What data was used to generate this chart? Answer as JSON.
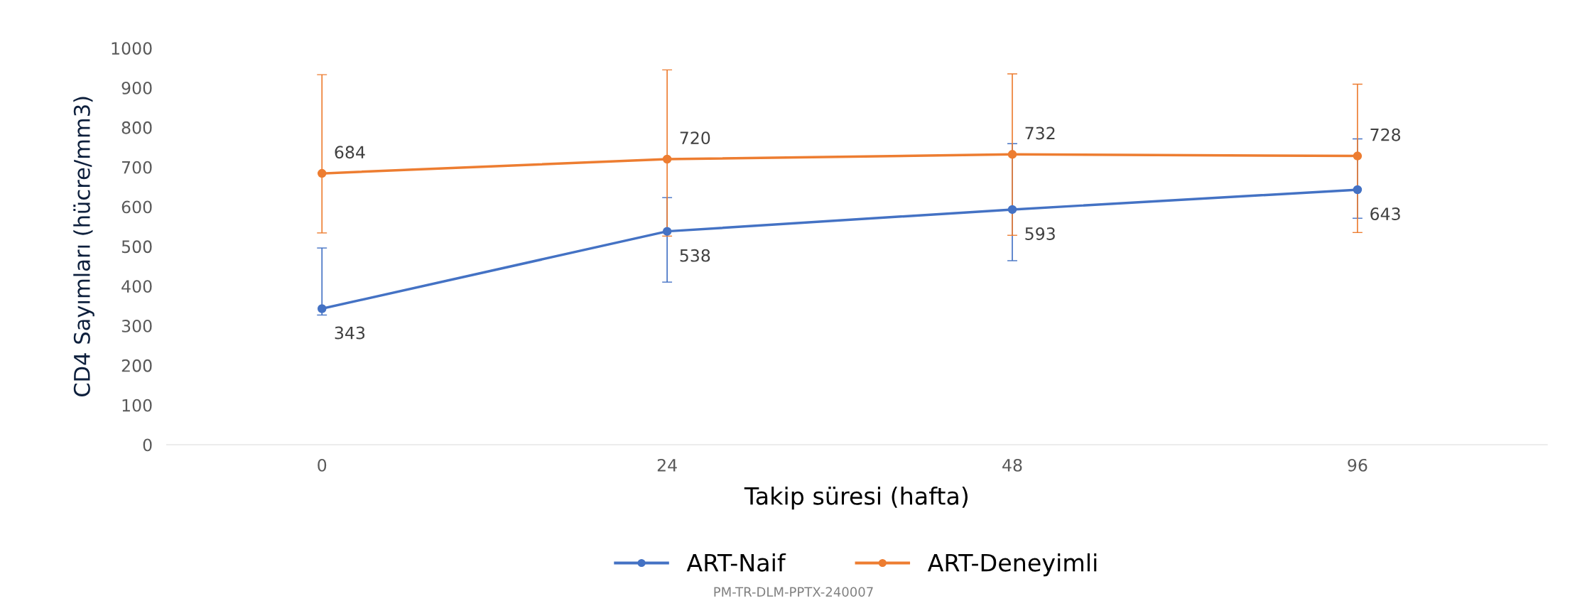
{
  "chart_data": {
    "type": "line",
    "xlabel": "Takip süresi (hafta)",
    "ylabel": "CD4 Sayımları (hücre/mm3)",
    "categories": [
      "0",
      "24",
      "48",
      "96"
    ],
    "series": [
      {
        "name": "ART-Naif",
        "color": "#4472c4",
        "values": [
          343,
          538,
          593,
          643
        ],
        "errors": [
          [
            327,
            496
          ],
          [
            410,
            623
          ],
          [
            464,
            759
          ],
          [
            571,
            771
          ]
        ]
      },
      {
        "name": "ART-Deneyimli",
        "color": "#ed7d31",
        "values": [
          684,
          720,
          732,
          728
        ],
        "errors": [
          [
            534,
            933
          ],
          [
            526,
            945
          ],
          [
            528,
            935
          ],
          [
            535,
            909
          ]
        ]
      }
    ],
    "ylim": [
      0,
      1000
    ],
    "yticks": [
      0,
      100,
      200,
      300,
      400,
      500,
      600,
      700,
      800,
      900,
      1000
    ],
    "data_labels": true,
    "grid": false,
    "legend": "bottom",
    "marker": "circle",
    "line_style": "solid",
    "annotations": [
      "PM-TR-DLM-PPTX-240007"
    ]
  }
}
